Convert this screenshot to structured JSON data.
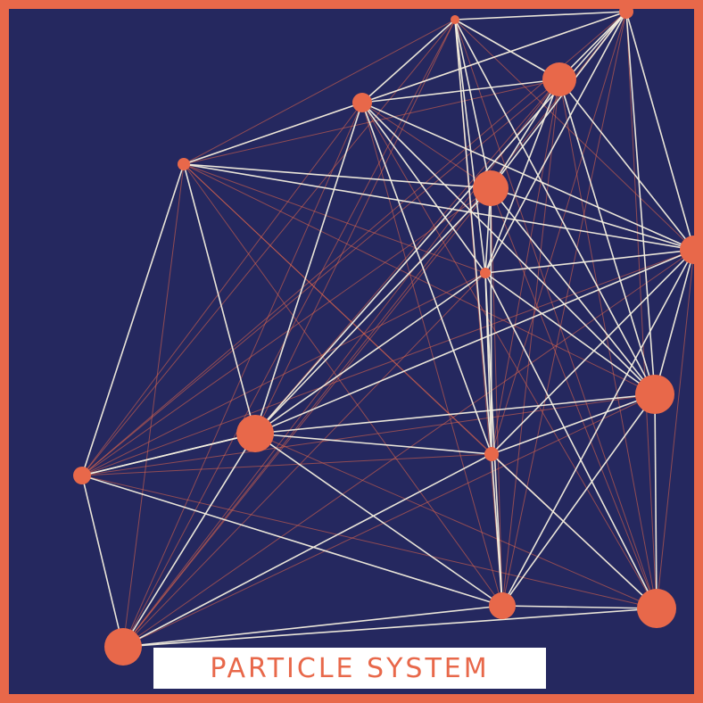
{
  "title": "PARTICLE SYSTEM",
  "colors": {
    "background": "#25285f",
    "frame": "#e8684a",
    "particle": "#e8684a",
    "primary_link": "#f4efdf",
    "secondary_link": "#e8684a",
    "title_plate": "#ffffff",
    "title_text": "#e8684a"
  }
}
